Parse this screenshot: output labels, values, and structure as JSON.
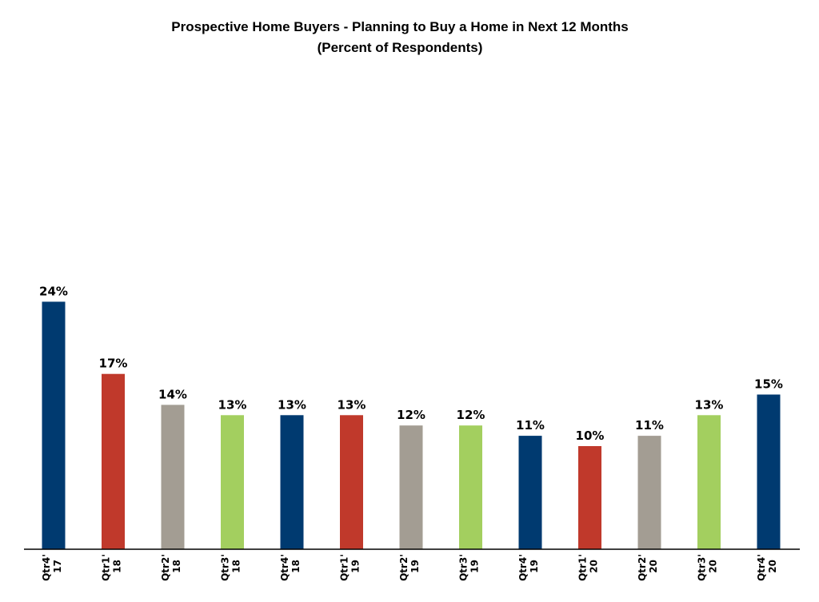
{
  "chart_data": {
    "type": "bar",
    "title": "Prospective Home Buyers  - Planning to Buy a Home in Next 12 Months",
    "subtitle": "(Percent of Respondents)",
    "categories": [
      [
        "Qtr4'",
        "17"
      ],
      [
        "Qtr1'",
        "18"
      ],
      [
        "Qtr2'",
        "18"
      ],
      [
        "Qtr3'",
        "18"
      ],
      [
        "Qtr4'",
        "18"
      ],
      [
        "Qtr1'",
        "19"
      ],
      [
        "Qtr2'",
        "19"
      ],
      [
        "Qtr3'",
        "19"
      ],
      [
        "Qtr4'",
        "19"
      ],
      [
        "Qtr1'",
        "20"
      ],
      [
        "Qtr2'",
        "20"
      ],
      [
        "Qtr3'",
        "20"
      ],
      [
        "Qtr4'",
        "20"
      ]
    ],
    "values": [
      24,
      17,
      14,
      13,
      13,
      13,
      12,
      12,
      11,
      10,
      11,
      13,
      15
    ],
    "value_labels": [
      "24%",
      "17%",
      "14%",
      "13%",
      "13%",
      "13%",
      "12%",
      "12%",
      "11%",
      "10%",
      "11%",
      "13%",
      "15%"
    ],
    "unit": "%",
    "ylim": [
      0,
      24
    ],
    "grid": false,
    "legend": "none",
    "colors": [
      "#003A70",
      "#C0392B",
      "#A39D93",
      "#A3CF5F",
      "#003A70",
      "#C0392B",
      "#A39D93",
      "#A3CF5F",
      "#003A70",
      "#C0392B",
      "#A39D93",
      "#A3CF5F",
      "#003A70"
    ],
    "axis_color": "#000000"
  }
}
